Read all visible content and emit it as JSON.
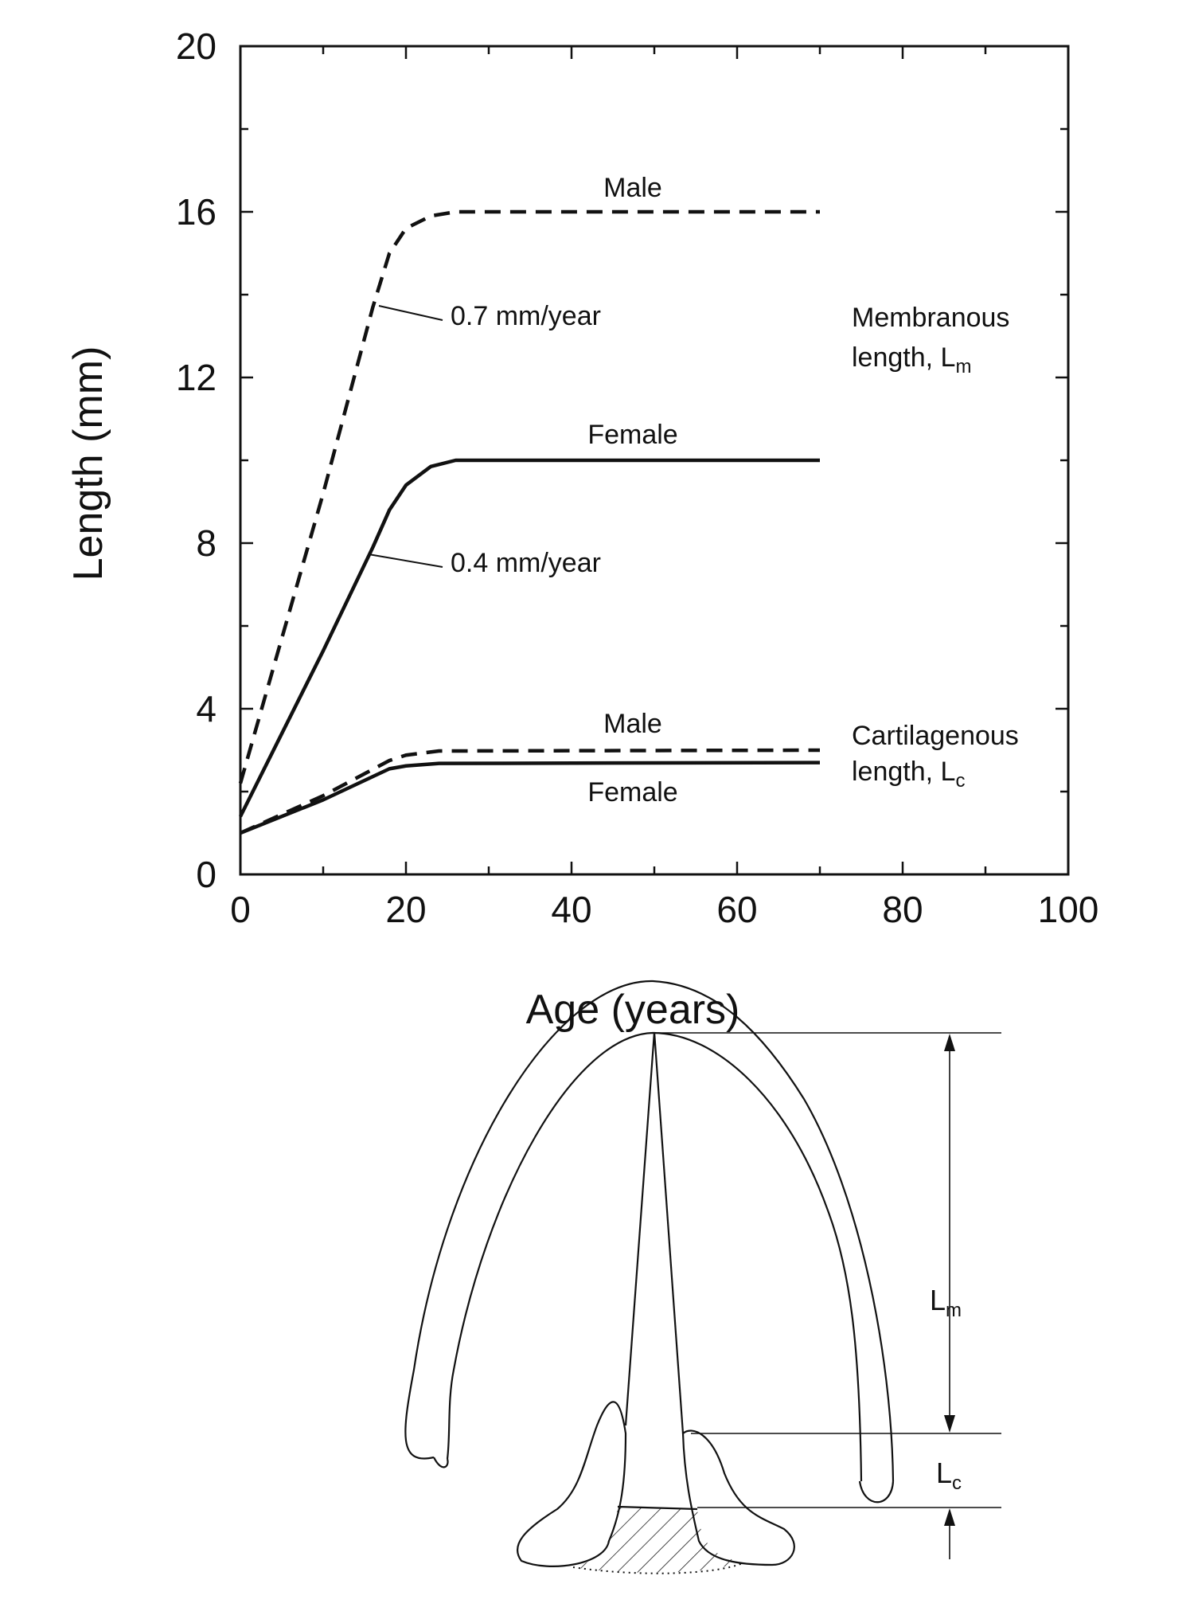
{
  "chart_data": {
    "type": "line",
    "xlabel": "Age (years)",
    "ylabel": "Length (mm)",
    "xlim": [
      0,
      100
    ],
    "ylim": [
      0,
      20
    ],
    "xticks": [
      "0",
      "20",
      "40",
      "60",
      "80",
      "100"
    ],
    "yticks": [
      "0",
      "4",
      "8",
      "12",
      "16",
      "20"
    ],
    "grid": false,
    "series": [
      {
        "name": "Male",
        "group": "Membranous",
        "style": "dashed",
        "points": [
          [
            0,
            2.2
          ],
          [
            10,
            9.2
          ],
          [
            16,
            13.7
          ],
          [
            18,
            15.0
          ],
          [
            20,
            15.6
          ],
          [
            23,
            15.9
          ],
          [
            26,
            16.0
          ],
          [
            70,
            16.0
          ]
        ]
      },
      {
        "name": "Female",
        "group": "Membranous",
        "style": "solid",
        "points": [
          [
            0,
            1.4
          ],
          [
            10,
            5.4
          ],
          [
            16,
            7.9
          ],
          [
            18,
            8.8
          ],
          [
            20,
            9.4
          ],
          [
            23,
            9.85
          ],
          [
            26,
            10.0
          ],
          [
            70,
            10.0
          ]
        ]
      },
      {
        "name": "Male",
        "group": "Cartilagenous",
        "style": "dashed",
        "points": [
          [
            0,
            1.0
          ],
          [
            10,
            1.9
          ],
          [
            18,
            2.75
          ],
          [
            20,
            2.88
          ],
          [
            24,
            2.98
          ],
          [
            70,
            3.0
          ]
        ]
      },
      {
        "name": "Female",
        "group": "Cartilagenous",
        "style": "solid",
        "points": [
          [
            0,
            1.0
          ],
          [
            10,
            1.8
          ],
          [
            18,
            2.55
          ],
          [
            20,
            2.62
          ],
          [
            24,
            2.68
          ],
          [
            70,
            2.7
          ]
        ]
      }
    ],
    "annotations": {
      "male_membranous": "Male",
      "female_membranous": "Female",
      "male_cartilagenous": "Male",
      "female_cartilagenous": "Female",
      "rate_male": "0.7 mm/year",
      "rate_female": "0.4 mm/year",
      "membranous_line1": "Membranous",
      "membranous_line2_main": "length, L",
      "membranous_line2_sub": "m",
      "cartilagenous_line1": "Cartilagenous",
      "cartilagenous_line2_main": "length, L",
      "cartilagenous_line2_sub": "c"
    }
  },
  "diagram": {
    "lm_main": "L",
    "lm_sub": "m",
    "lc_main": "L",
    "lc_sub": "c"
  }
}
